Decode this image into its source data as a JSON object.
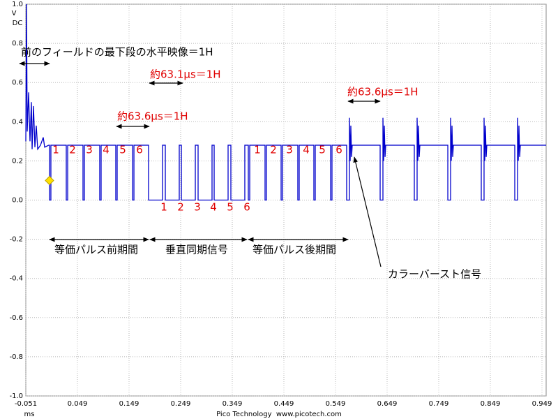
{
  "chart_data": {
    "type": "line",
    "ylabel": [
      "V",
      "DC"
    ],
    "xlabel": "ms",
    "footer": "Pico Technology  www.picotech.com",
    "xlim": [
      -0.051,
      0.9571
    ],
    "ylim": [
      -1.0,
      1.0
    ],
    "xticks": [
      -0.051,
      0.049,
      0.149,
      0.249,
      0.349,
      0.449,
      0.549,
      0.649,
      0.749,
      0.849,
      0.949
    ],
    "yticks": [
      {
        "value": -1.0,
        "label": "-1.0"
      },
      -0.8,
      -0.6,
      -0.4,
      -0.2,
      {
        "value": 0,
        "label": "0.0"
      },
      0.2,
      0.4,
      0.6,
      0.8,
      {
        "value": 1.0,
        "label": "1.0"
      }
    ],
    "grid": true,
    "trigger": {
      "x": -0.0051,
      "y": 0.1
    },
    "x": [
      -0.051,
      -0.0496,
      -0.0483,
      -0.0456,
      -0.0429,
      -0.0402,
      -0.0388,
      -0.0361,
      -0.0334,
      -0.0307,
      -0.028,
      -0.0226,
      -0.0172,
      -0.0145,
      -0.0064,
      -0.0051,
      -0.0051,
      -0.0024,
      -0.0024,
      0.0274,
      0.0274,
      0.0301,
      0.0301,
      0.0598,
      0.0598,
      0.0625,
      0.0625,
      0.0922,
      0.0922,
      0.0949,
      0.0949,
      0.1233,
      0.1233,
      0.126,
      0.126,
      0.1558,
      0.1558,
      0.1585,
      0.1585,
      0.1868,
      0.1868,
      0.2139,
      0.2139,
      0.2193,
      0.2193,
      0.2463,
      0.2463,
      0.2504,
      0.2504,
      0.2774,
      0.2774,
      0.2828,
      0.2828,
      0.3098,
      0.3098,
      0.3139,
      0.3139,
      0.3409,
      0.3409,
      0.3463,
      0.3463,
      0.3733,
      0.3733,
      0.3801,
      0.3801,
      0.3828,
      0.3828,
      0.4125,
      0.4125,
      0.4152,
      0.4152,
      0.4436,
      0.4436,
      0.4463,
      0.4463,
      0.476,
      0.476,
      0.4787,
      0.4787,
      0.5071,
      0.5071,
      0.5098,
      0.5098,
      0.5395,
      0.5395,
      0.5422,
      0.5422,
      0.5706,
      0.5706,
      0.576,
      0.576,
      0.5774,
      0.5787,
      0.5801,
      0.5814,
      0.6355,
      0.6355,
      0.6409,
      0.6409,
      0.6423,
      0.6436,
      0.645,
      0.6463,
      0.7017,
      0.7017,
      0.7071,
      0.7071,
      0.7085,
      0.7098,
      0.7112,
      0.7125,
      0.7666,
      0.7666,
      0.772,
      0.772,
      0.7733,
      0.7747,
      0.776,
      0.7774,
      0.8314,
      0.8314,
      0.8368,
      0.8368,
      0.8382,
      0.8395,
      0.8409,
      0.8422,
      0.8963,
      0.8963,
      0.9017,
      0.9017,
      0.9031,
      0.9044,
      0.9058,
      0.9071,
      0.9571
    ],
    "series": [
      {
        "color": "#0000cc",
        "values": [
          0.3,
          1.0,
          0.35,
          0.55,
          0.3,
          0.5,
          0.26,
          0.48,
          0.27,
          0.38,
          0.26,
          0.28,
          0.32,
          0.27,
          0.28,
          0.28,
          0,
          0,
          0.28,
          0.28,
          0,
          0,
          0.28,
          0.28,
          0,
          0,
          0.28,
          0.28,
          0,
          0,
          0.28,
          0.28,
          0,
          0,
          0.28,
          0.28,
          0,
          0,
          0.28,
          0.28,
          0,
          0,
          0.28,
          0.28,
          0,
          0,
          0.28,
          0.28,
          0,
          0,
          0.28,
          0.28,
          0,
          0,
          0.28,
          0.28,
          0,
          0,
          0.28,
          0.28,
          0,
          0,
          0.28,
          0.28,
          0,
          0,
          0.28,
          0.28,
          0,
          0,
          0.28,
          0.28,
          0,
          0,
          0.28,
          0.28,
          0,
          0,
          0.28,
          0.28,
          0,
          0,
          0.28,
          0.28,
          0,
          0,
          0.28,
          0.28,
          0,
          0,
          0.42,
          0.2,
          0.38,
          0.22,
          0.28,
          0.28,
          0,
          0,
          0.42,
          0.2,
          0.38,
          0.22,
          0.28,
          0.28,
          0,
          0,
          0.42,
          0.2,
          0.38,
          0.22,
          0.28,
          0.28,
          0,
          0,
          0.42,
          0.2,
          0.38,
          0.22,
          0.28,
          0.28,
          0,
          0,
          0.42,
          0.2,
          0.38,
          0.22,
          0.28,
          0.28,
          0,
          0,
          0.42,
          0.2,
          0.38,
          0.22,
          0.28,
          0.28
        ]
      }
    ],
    "annotations": [
      "前のフィールドの最下段の水平映像＝1H",
      "約63.1μs＝1H",
      "約63.6μs＝1H",
      "約63.6μs＝1H",
      "等価パルス前期間",
      "垂直同期信号",
      "等価パルス後期間",
      "カラーバースト信号"
    ],
    "pulse_labels": [
      [
        "1",
        "2",
        "3",
        "4",
        "5",
        "6"
      ],
      [
        "1",
        "2",
        "3",
        "4",
        "5",
        "6"
      ],
      [
        "1",
        "2",
        "3",
        "4",
        "5",
        "6"
      ]
    ]
  }
}
